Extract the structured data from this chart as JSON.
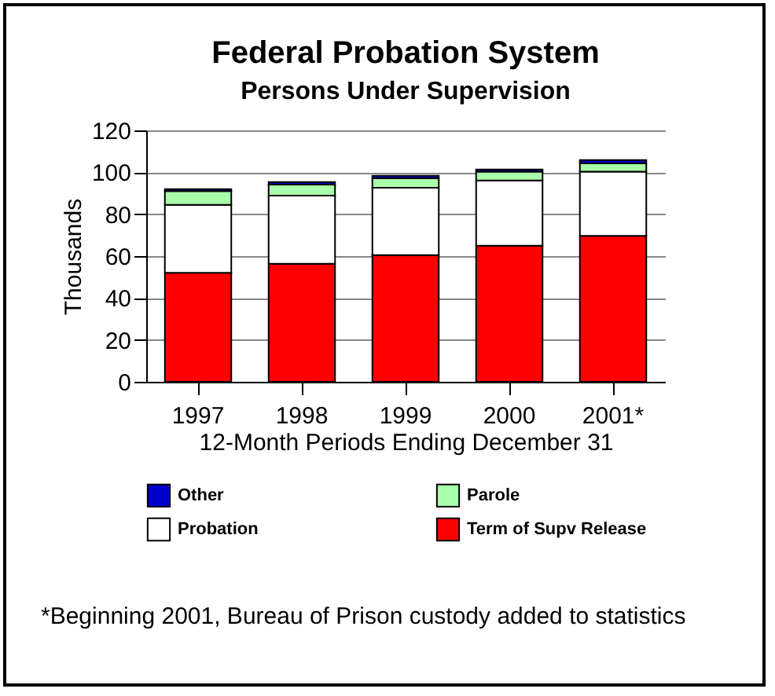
{
  "chart_data": {
    "type": "bar",
    "title": "Federal Probation System",
    "subtitle": "Persons Under Supervision",
    "xlabel": "12-Month Periods Ending December 31",
    "ylabel": "Thousands",
    "categories": [
      "1997",
      "1998",
      "1999",
      "2000",
      "2001*"
    ],
    "stacked": true,
    "series": [
      {
        "name": "Term of Supv Release",
        "color": "#ff0000",
        "values": [
          52,
          56.3,
          60.5,
          65,
          69.7
        ]
      },
      {
        "name": "Probation",
        "color": "#ffffff",
        "values": [
          32.5,
          32.6,
          32.1,
          31.1,
          30.6
        ]
      },
      {
        "name": "Parole",
        "color": "#aaffaa",
        "values": [
          6.5,
          5.2,
          4.5,
          4.2,
          4.0
        ]
      },
      {
        "name": "Other",
        "color": "#0000cc",
        "values": [
          1,
          1.2,
          1.2,
          1,
          1.5
        ]
      }
    ],
    "ylim": [
      0,
      120
    ],
    "yticks": [
      0,
      20,
      40,
      60,
      80,
      100,
      120
    ],
    "grid": "y",
    "legend": "bottom",
    "annotations": [
      "*Beginning 2001, Bureau of Prison custody added to statistics"
    ]
  }
}
